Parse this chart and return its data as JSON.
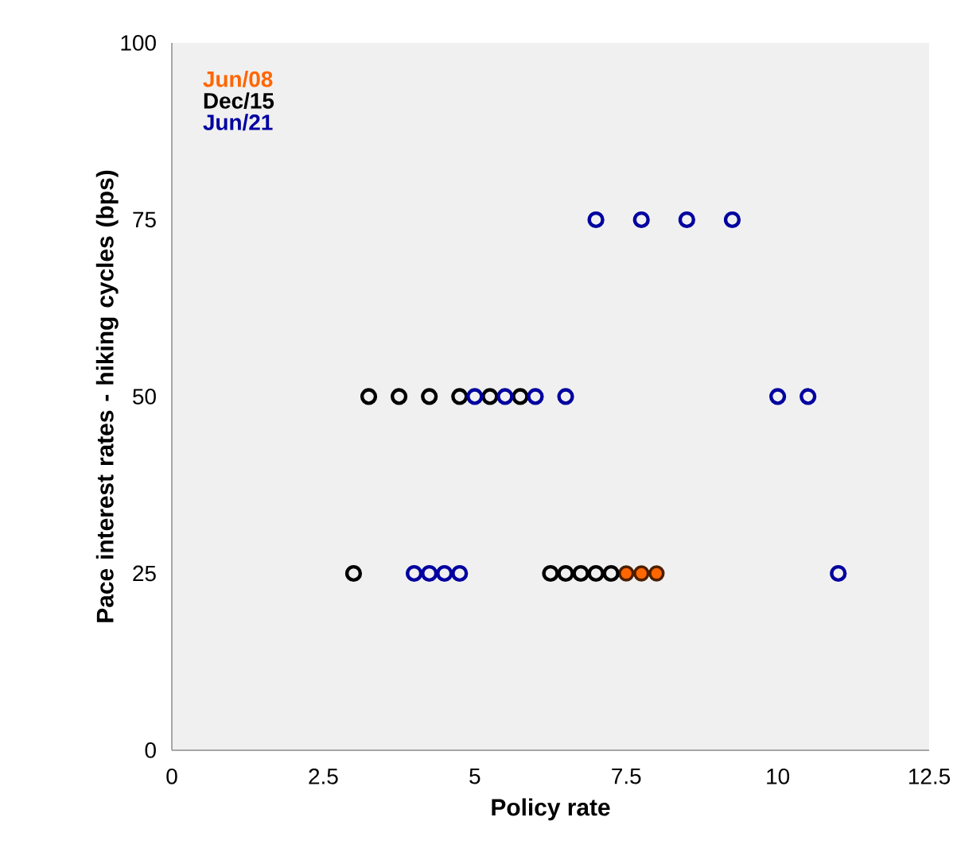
{
  "chart_data": {
    "type": "scatter",
    "xlabel": "Policy rate",
    "ylabel": "Pace interest rates - hiking cycles (bps)",
    "series": [
      {
        "name": "Jun/08",
        "color": "#ff6600",
        "x": [
          7.5,
          7.75,
          8.0
        ],
        "values": [
          25,
          25,
          25
        ]
      },
      {
        "name": "Dec/15",
        "color": "#000000",
        "x": [
          3.0,
          6.25,
          6.5,
          6.75,
          7.0,
          7.25,
          3.25,
          3.75,
          4.25,
          4.75,
          5.25,
          5.75
        ],
        "values": [
          25,
          25,
          25,
          25,
          25,
          25,
          50,
          50,
          50,
          50,
          50,
          50
        ]
      },
      {
        "name": "Jun/21",
        "color": "#0000a0",
        "x": [
          4.0,
          4.25,
          4.5,
          4.75,
          11.0,
          5.0,
          5.5,
          6.0,
          6.5,
          10.0,
          10.5,
          7.0,
          7.75,
          8.5,
          9.25
        ],
        "values": [
          25,
          25,
          25,
          25,
          25,
          50,
          50,
          50,
          50,
          50,
          50,
          75,
          75,
          75,
          75
        ]
      }
    ],
    "xlim": [
      0,
      12.5
    ],
    "xticks": [
      0,
      2.5,
      5,
      7.5,
      10,
      12.5
    ],
    "ylim": [
      0,
      100
    ],
    "yticks": [
      0,
      25,
      50,
      75,
      100
    ],
    "marker": "circle",
    "legend": "top left",
    "grid": false
  }
}
